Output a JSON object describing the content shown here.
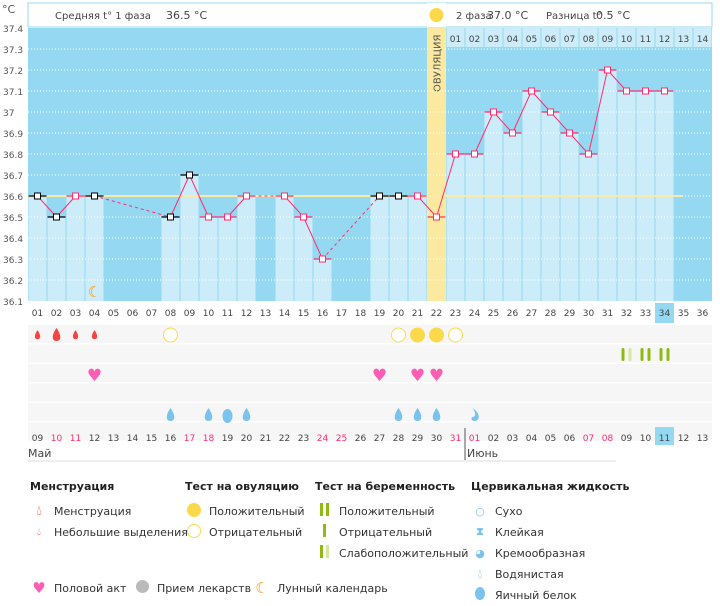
{
  "chart_data": {
    "type": "line",
    "yunit": "°C",
    "ylim": [
      36.1,
      37.4
    ],
    "yticks": [
      "37.4",
      "37.3",
      "37.2",
      "37.1",
      "37",
      "36.9",
      "36.8",
      "36.7",
      "36.6",
      "36.5",
      "36.4",
      "36.3",
      "36.2",
      "36.1"
    ],
    "cycle_days": [
      "01",
      "02",
      "03",
      "04",
      "05",
      "06",
      "07",
      "08",
      "09",
      "10",
      "11",
      "12",
      "13",
      "14",
      "15",
      "16",
      "17",
      "18",
      "19",
      "20",
      "21",
      "22",
      "23",
      "24",
      "25",
      "26",
      "27",
      "28",
      "29",
      "30",
      "31",
      "32",
      "33",
      "34",
      "35",
      "36"
    ],
    "temperatures": [
      36.6,
      36.5,
      36.6,
      36.6,
      null,
      null,
      null,
      36.5,
      36.7,
      36.5,
      36.5,
      36.6,
      null,
      36.6,
      36.5,
      36.3,
      null,
      null,
      36.6,
      36.6,
      36.6,
      36.5,
      36.8,
      36.8,
      37.0,
      36.9,
      37.1,
      37.0,
      36.9,
      36.8,
      37.2,
      37.1,
      37.1,
      37.1,
      null,
      null
    ],
    "excluded_days": [
      1,
      2,
      4,
      8,
      9,
      19,
      20
    ],
    "coverline": 36.6,
    "ovulation_day": 22,
    "ovulation_label": "ОВУЛЯЦИЯ",
    "phase2_days": [
      "01",
      "02",
      "03",
      "04",
      "05",
      "06",
      "07",
      "08",
      "09",
      "10",
      "11",
      "12",
      "13",
      "14"
    ],
    "today_day": 34,
    "phase1_text": "Средняя t° 1 фаза",
    "phase1_value": "36.5 °C",
    "phase2_text": "2 фаза",
    "phase2_value": "37.0 °C",
    "diff_text": "Разница t°",
    "diff_value": "0.5 °C",
    "dates": [
      "09",
      "10",
      "11",
      "12",
      "13",
      "14",
      "15",
      "16",
      "17",
      "18",
      "19",
      "20",
      "21",
      "22",
      "23",
      "24",
      "25",
      "26",
      "27",
      "28",
      "29",
      "30",
      "31",
      "01",
      "02",
      "03",
      "04",
      "05",
      "06",
      "07",
      "08",
      "09",
      "10",
      "11",
      "12",
      "13"
    ],
    "red_dates": [
      2,
      3,
      9,
      10,
      16,
      17,
      23,
      24,
      30,
      31
    ],
    "months": [
      "Май",
      "Июнь"
    ],
    "menstruation": {
      "1": "small",
      "2": "normal",
      "3": "small",
      "4": "small"
    },
    "ovulation_tests": {
      "8": "negative",
      "20": "negative",
      "21": "positive",
      "22": "positive",
      "23": "negative"
    },
    "pregnancy_tests": {
      "32": "weak",
      "33": "positive",
      "34": "positive"
    },
    "intercourse": [
      4,
      19,
      21,
      22
    ],
    "cervical": {
      "8": "watery",
      "10": "watery",
      "11": "eggwhite",
      "12": "watery",
      "20": "watery",
      "21": "watery",
      "22": "watery",
      "24": "creamy"
    },
    "moon_days": [
      4
    ]
  },
  "colors": {
    "bg_dark": "#94d8f2",
    "bar": "#ccecfa",
    "line": "#ff2d6e",
    "coverline": "#fbe9a6",
    "ovulation": "#fce9a0",
    "blood": "#f44444",
    "yellow": "#fcd94a",
    "green": "#8dbb10",
    "green_pale": "#d3e7a0",
    "heart": "#ff5cb4",
    "drop": "#79c3ee",
    "moon": "#f0961a"
  },
  "legend": {
    "menstruation": {
      "title": "Менструация",
      "items": [
        "Менструация",
        "Небольшие выделения"
      ]
    },
    "ovulation": {
      "title": "Тест на овуляцию",
      "items": [
        "Положительный",
        "Отрицательный"
      ]
    },
    "pregnancy": {
      "title": "Тест на беременность",
      "items": [
        "Положительный",
        "Отрицательный",
        "Слабоположительный"
      ]
    },
    "cervical": {
      "title": "Цервикальная жидкость",
      "items": [
        "Сухо",
        "Клейкая",
        "Кремообразная",
        "Водянистая",
        "Яичный белок"
      ]
    },
    "other": [
      "Половой акт",
      "Прием лекарств",
      "Лунный календарь"
    ]
  }
}
